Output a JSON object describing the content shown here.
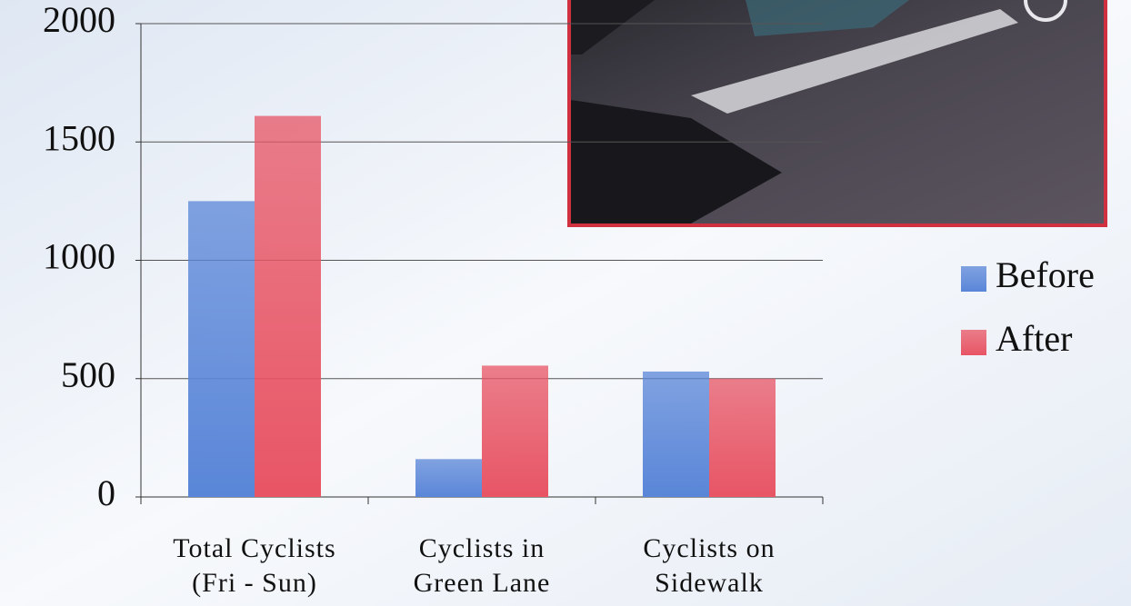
{
  "chart_data": {
    "type": "bar",
    "categories": [
      "Total Cyclists\n(Fri - Sun)",
      "Cyclists in\nGreen Lane",
      "Cyclists on\nSidewalk"
    ],
    "series": [
      {
        "name": "Before",
        "color": "#5a86d8",
        "values": [
          1250,
          160,
          530
        ]
      },
      {
        "name": "After",
        "color": "#e85565",
        "values": [
          1610,
          555,
          500
        ]
      }
    ],
    "ylim": [
      0,
      2000
    ],
    "yticks": [
      0,
      500,
      1000,
      1500,
      2000
    ],
    "grid": true,
    "legend": "right"
  }
}
